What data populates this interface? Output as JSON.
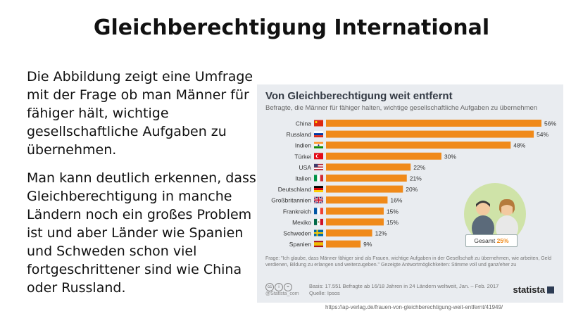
{
  "slide": {
    "title": "Gleichberechtigung International",
    "paragraph1": "Die Abbildung zeigt eine Umfrage mit der Frage ob man Männer für fähiger hält, wichtige gesellschaftliche Aufgaben zu übernehmen.",
    "paragraph2": "Man kann deutlich erkennen, dass Gleichberechtigung in manche Ländern noch ein großes Problem ist und aber Länder wie Spanien und Schweden schon viel fortgeschrittener sind wie China oder Russland.",
    "url": "https://ap-verlag.de/frauen-von-gleichberechtigung-weit-entfernt/41949/"
  },
  "colors": {
    "bar": "#f08a1a",
    "card_bg": "#e9ecf0",
    "accent": "#f08a1a"
  },
  "chart_data": {
    "type": "bar",
    "orientation": "horizontal",
    "title": "Von Gleichberechtigung weit entfernt",
    "subtitle": "Befragte, die Männer für fähiger halten, wichtige gesellschaftliche Aufgaben zu übernehmen",
    "categories": [
      "China",
      "Russland",
      "Indien",
      "Türkei",
      "USA",
      "Italien",
      "Deutschland",
      "Großbritannien",
      "Frankreich",
      "Mexiko",
      "Schweden",
      "Spanien"
    ],
    "values": [
      56,
      54,
      48,
      30,
      22,
      21,
      20,
      16,
      15,
      15,
      12,
      9
    ],
    "value_labels": [
      "56%",
      "54%",
      "48%",
      "30%",
      "22%",
      "21%",
      "20%",
      "16%",
      "15%",
      "15%",
      "12%",
      "9%"
    ],
    "flags": [
      "china-flag-icon",
      "russia-flag-icon",
      "india-flag-icon",
      "turkey-flag-icon",
      "usa-flag-icon",
      "italy-flag-icon",
      "germany-flag-icon",
      "uk-flag-icon",
      "france-flag-icon",
      "mexico-flag-icon",
      "sweden-flag-icon",
      "spain-flag-icon"
    ],
    "xlim": [
      0,
      56
    ],
    "grid": false,
    "total_label": "Gesamt",
    "total_value": "25%",
    "footnote": "Frage: \"Ich glaube, dass Männer fähiger sind als Frauen, wichtige Aufgaben in der Gesellschaft zu übernehmen, wie arbeiten, Geld verdienen, Bildung zu erlangen und weiterzugeben.\" Gezeigte Antwortmöglichkeiten: Stimme voll und ganz/eher zu",
    "source_line1": "Basis: 17.551 Befragte ab 16/18 Jahren in 24 Ländern weltweit, Jan. – Feb. 2017",
    "source_line2": "Quelle: Ipsos",
    "cc_label": "@Statista_com",
    "brand": "statista"
  }
}
